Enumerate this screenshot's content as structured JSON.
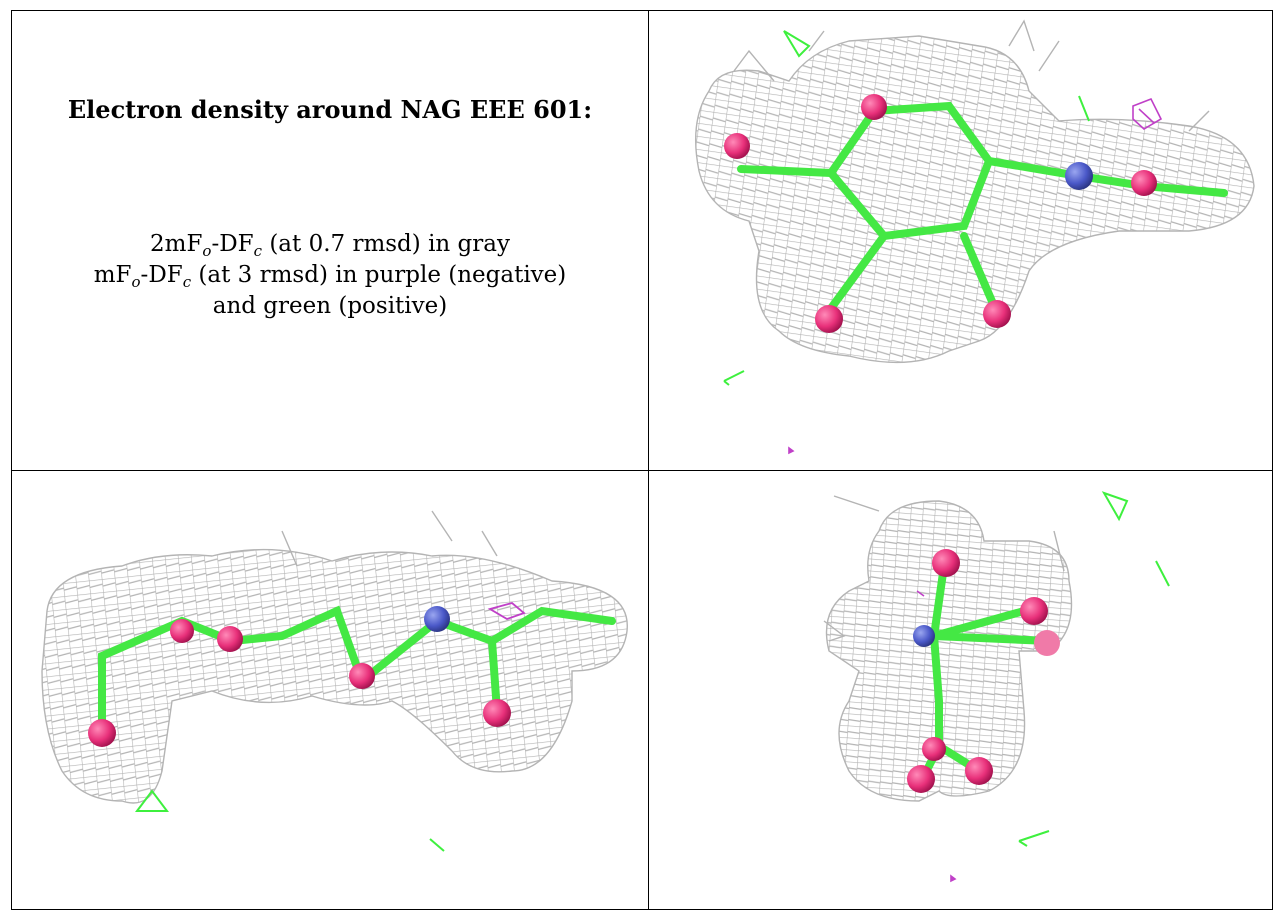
{
  "caption": {
    "title": "Electron density around NAG EEE 601:",
    "line1": {
      "pre": "2mF",
      "sub1": "o",
      "mid": "-DF",
      "sub2": "c",
      "post": " (at 0.7 rmsd) in gray"
    },
    "line2": {
      "pre": "mF",
      "sub1": "o",
      "mid": "-DF",
      "sub2": "c",
      "post": " (at 3 rmsd) in purple (negative)"
    },
    "line3": "and green (positive)"
  },
  "colors": {
    "mesh_2fofc": "#b4b4b4",
    "mesh_negative": "#c040c8",
    "mesh_positive": "#3ef03e",
    "carbon": "#44e844",
    "oxygen": "#e8307a",
    "nitrogen": "#4a58c8"
  },
  "views": [
    {
      "name": "view-top-right",
      "orientation": "ring face-on"
    },
    {
      "name": "view-bottom-left",
      "orientation": "side view"
    },
    {
      "name": "view-bottom-right",
      "orientation": "end-on view"
    }
  ]
}
